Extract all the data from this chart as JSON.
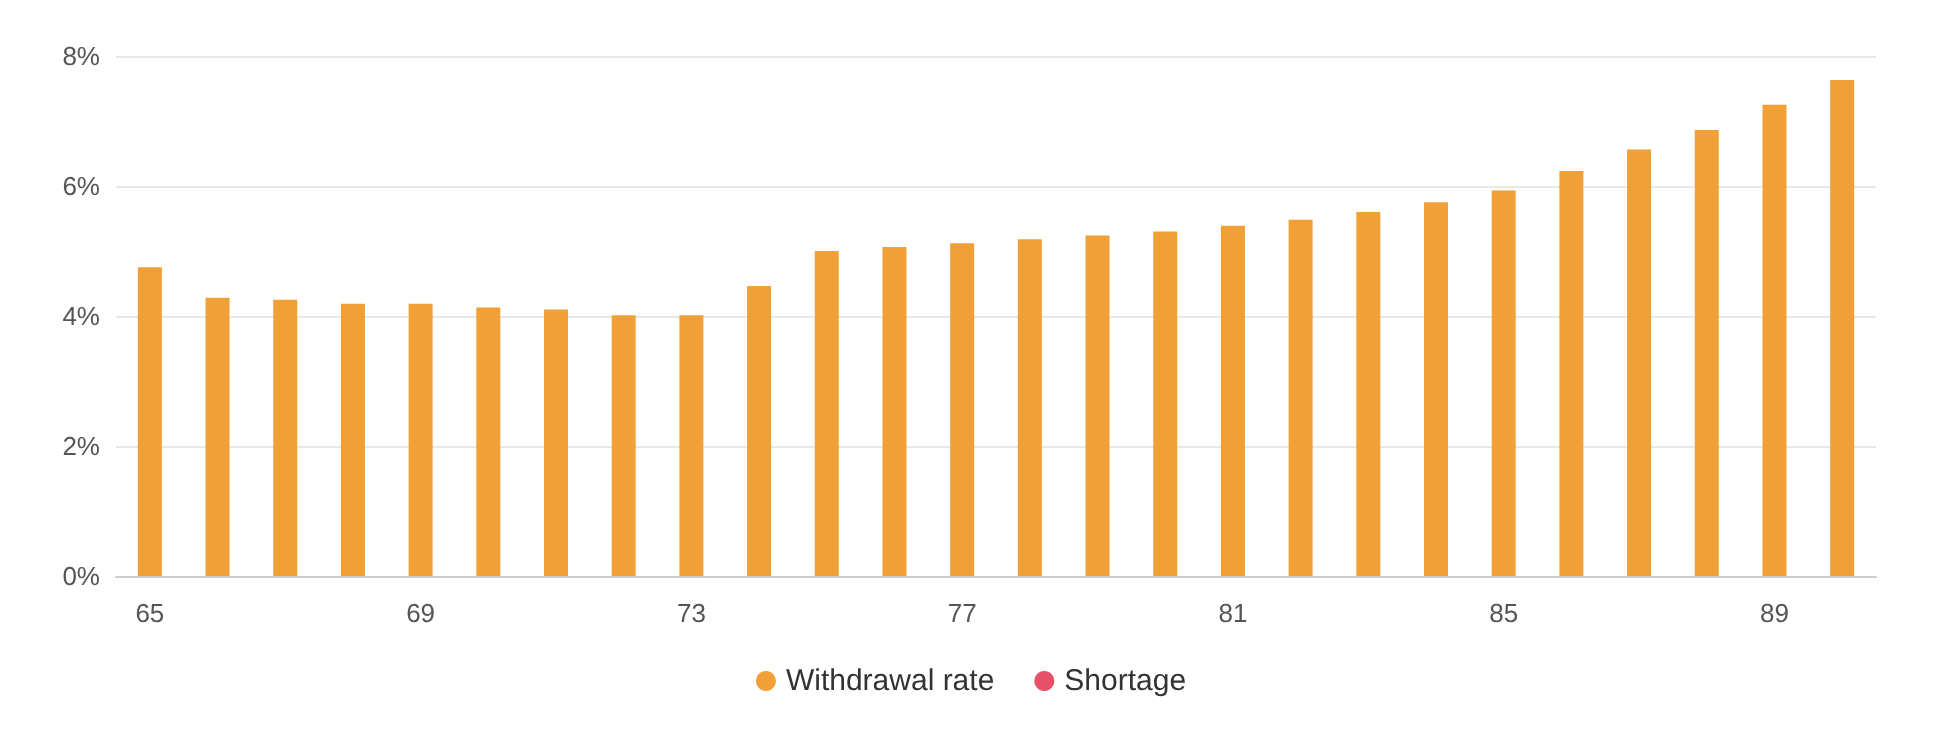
{
  "chart_data": {
    "type": "bar",
    "categories": [
      "65",
      null,
      null,
      null,
      "69",
      null,
      null,
      null,
      "73",
      null,
      null,
      null,
      "77",
      null,
      null,
      null,
      "81",
      null,
      null,
      null,
      "85",
      null,
      null,
      null,
      "89",
      null
    ],
    "series": [
      {
        "name": "Withdrawal rate",
        "color": "#f0a037",
        "values": [
          4.75,
          4.28,
          4.25,
          4.19,
          4.19,
          4.13,
          4.1,
          4.01,
          4.01,
          4.46,
          5.0,
          5.06,
          5.12,
          5.18,
          5.24,
          5.3,
          5.39,
          5.48,
          5.6,
          5.75,
          5.93,
          6.23,
          6.56,
          6.86,
          7.25,
          7.63
        ]
      },
      {
        "name": "Shortage",
        "color": "#e8506a",
        "values": [
          null,
          null,
          null,
          null,
          null,
          null,
          null,
          null,
          null,
          null,
          null,
          null,
          null,
          null,
          null,
          null,
          null,
          null,
          null,
          null,
          null,
          null,
          null,
          null,
          null,
          null
        ]
      }
    ],
    "ylim": [
      0,
      8
    ],
    "yticks": [
      {
        "value": 0,
        "label": "0%"
      },
      {
        "value": 2,
        "label": "2%"
      },
      {
        "value": 4,
        "label": "4%"
      },
      {
        "value": 6,
        "label": "6%"
      },
      {
        "value": 8,
        "label": "8%"
      }
    ],
    "grid": "y",
    "legend": "bottom"
  }
}
